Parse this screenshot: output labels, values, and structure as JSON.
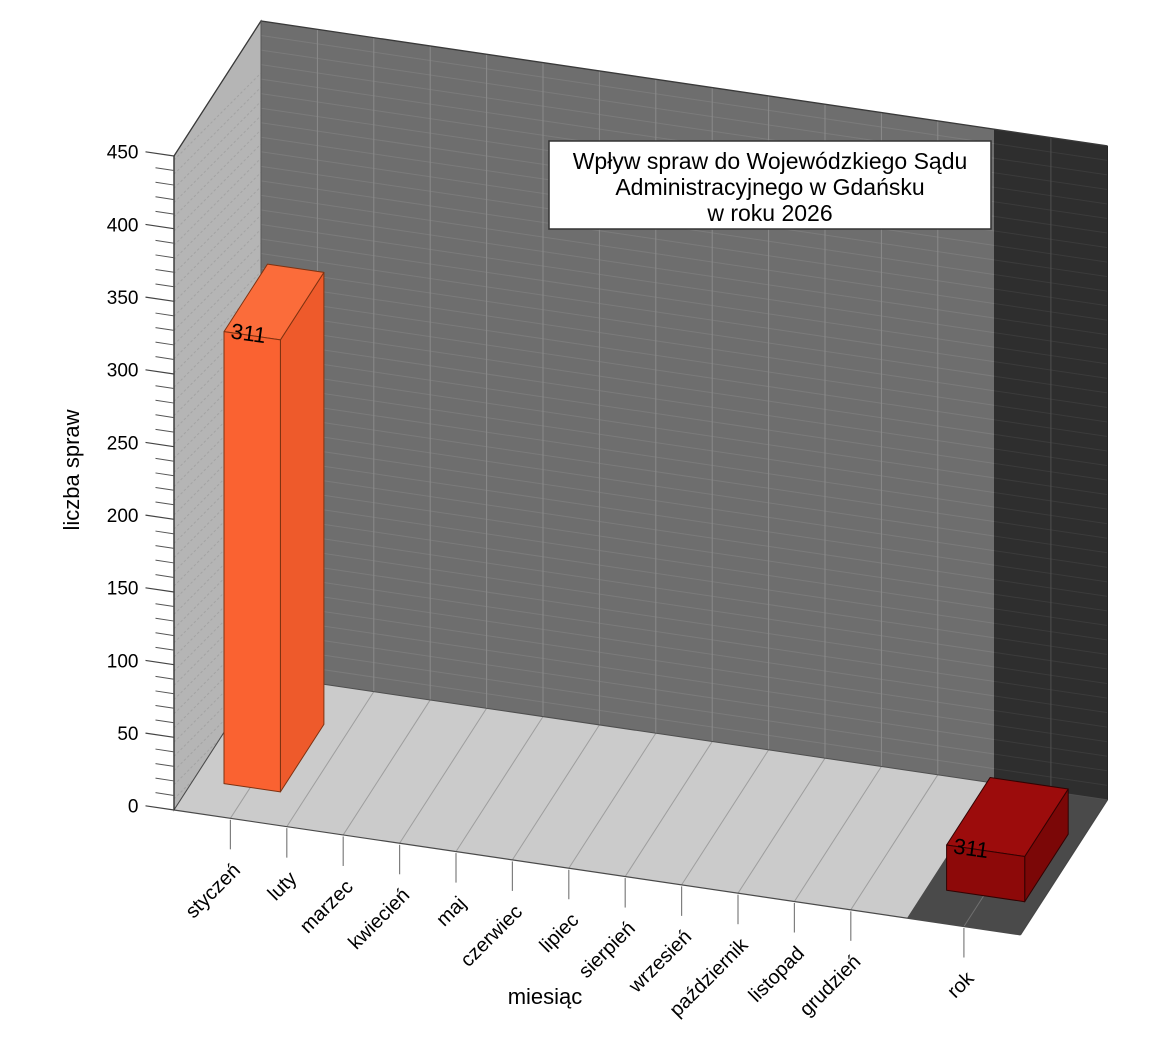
{
  "chart_data": {
    "type": "bar",
    "style": "3d",
    "title": "Wpływ spraw do Wojewódzkiego Sądu Administracyjnego w Gdańsku w roku 2026",
    "title_lines": [
      "Wpływ spraw do Wojewódzkiego Sądu",
      "Administracyjnego w Gdańsku",
      "w roku 2026"
    ],
    "xlabel": "miesiąc",
    "ylabel": "liczba spraw",
    "categories": [
      "styczeń",
      "luty",
      "marzec",
      "kwiecień",
      "maj",
      "czerwiec",
      "lipiec",
      "sierpień",
      "wrzesień",
      "październik",
      "listopad",
      "grudzień",
      "rok"
    ],
    "values": [
      311,
      null,
      null,
      null,
      null,
      null,
      null,
      null,
      null,
      null,
      null,
      null,
      311
    ],
    "y_axis": {
      "min": 0,
      "max": 450,
      "major_step": 50,
      "minor_step": 10
    },
    "grid": true,
    "legend": false,
    "highlighted_category": "rok",
    "bars": [
      {
        "category": "styczeń",
        "value": 311,
        "data_label": "311",
        "axis_max": 450,
        "label_color": "#000000",
        "colors": {
          "front": "#fa6231",
          "side": "#ee5a2b",
          "top": "#fb6c3a",
          "edge": "#7e3211"
        }
      },
      {
        "category": "rok",
        "value": 311,
        "data_label": "311",
        "axis_max": 4500,
        "label_color": "#ffffff",
        "colors": {
          "front": "#8d0909",
          "side": "#7b0707",
          "top": "#9c0c0c",
          "edge": "#320202"
        }
      }
    ]
  }
}
